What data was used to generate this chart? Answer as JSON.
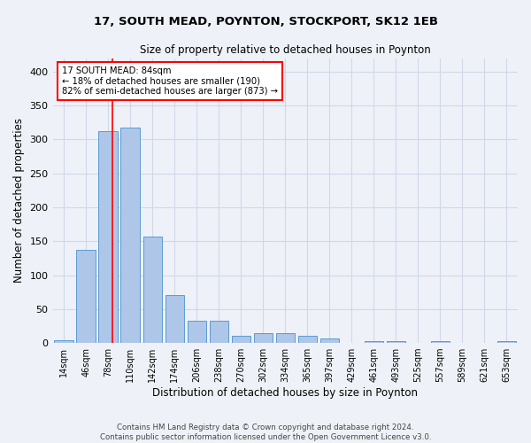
{
  "title1": "17, SOUTH MEAD, POYNTON, STOCKPORT, SK12 1EB",
  "title2": "Size of property relative to detached houses in Poynton",
  "xlabel": "Distribution of detached houses by size in Poynton",
  "ylabel": "Number of detached properties",
  "bin_labels": [
    "14sqm",
    "46sqm",
    "78sqm",
    "110sqm",
    "142sqm",
    "174sqm",
    "206sqm",
    "238sqm",
    "270sqm",
    "302sqm",
    "334sqm",
    "365sqm",
    "397sqm",
    "429sqm",
    "461sqm",
    "493sqm",
    "525sqm",
    "557sqm",
    "589sqm",
    "621sqm",
    "653sqm"
  ],
  "bar_heights": [
    4,
    137,
    312,
    317,
    157,
    70,
    33,
    33,
    11,
    14,
    14,
    10,
    7,
    0,
    3,
    3,
    0,
    3,
    0,
    0,
    3
  ],
  "bar_color": "#aec6e8",
  "bar_edge_color": "#5b9bd5",
  "bar_width": 0.85,
  "red_line_x": 2.18,
  "annotation_text": "17 SOUTH MEAD: 84sqm\n← 18% of detached houses are smaller (190)\n82% of semi-detached houses are larger (873) →",
  "annotation_box_color": "white",
  "annotation_box_edge_color": "red",
  "ylim": [
    0,
    420
  ],
  "yticks": [
    0,
    50,
    100,
    150,
    200,
    250,
    300,
    350,
    400
  ],
  "grid_color": "#d0d8e8",
  "background_color": "#eef2f8",
  "footer_text": "Contains HM Land Registry data © Crown copyright and database right 2024.\nContains public sector information licensed under the Open Government Licence v3.0."
}
